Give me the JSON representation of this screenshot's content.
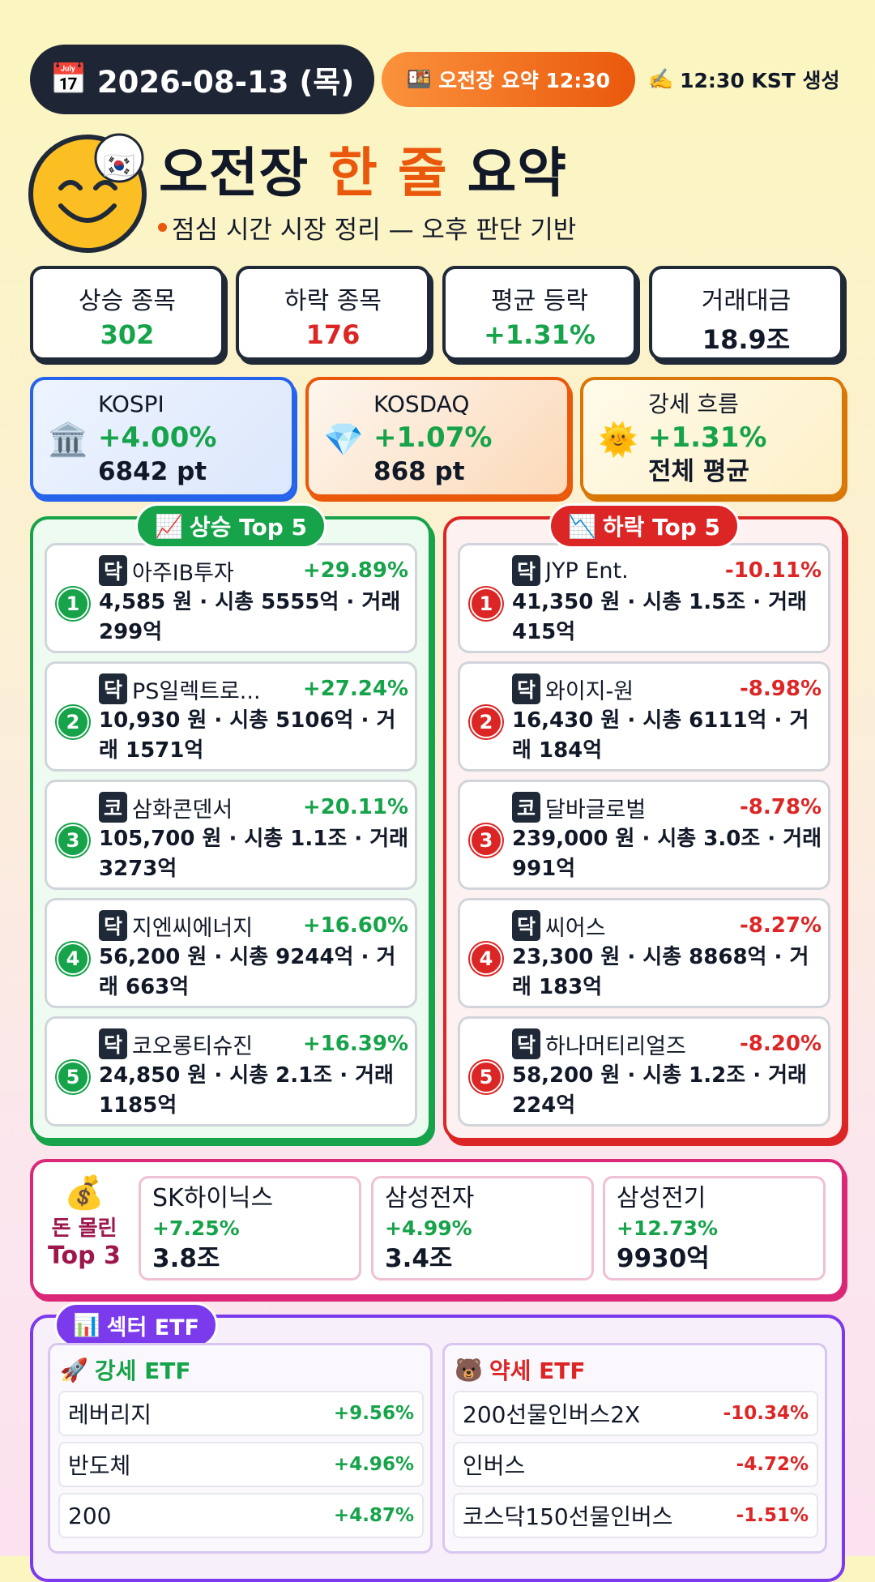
{
  "header": {
    "date_icon": "📅",
    "date": "2026-08-13 (목)",
    "session_icon": "🍱",
    "session": "오전장 요약 12:30",
    "generated_icon": "✍️",
    "generated": "12:30 KST 생성"
  },
  "hero": {
    "flag": "🇰🇷",
    "title_start": "오전장",
    "title_highlight": "한 줄",
    "title_end": "요약",
    "subtitle": "점심 시간 시장 정리 — 오후 판단 기반"
  },
  "stats": [
    {
      "label": "상승 종목",
      "value": "302"
    },
    {
      "label": "하락 종목",
      "value": "176"
    },
    {
      "label": "평균 등락",
      "value": "+1.31%"
    },
    {
      "label": "거래대금",
      "value": "18.9조"
    }
  ],
  "indices": [
    {
      "icon": "🏛️",
      "name": "KOSPI",
      "change": "+4.00%",
      "level": "6842 pt"
    },
    {
      "icon": "💎",
      "name": "KOSDAQ",
      "change": "+1.07%",
      "level": "868 pt"
    },
    {
      "icon": "🌞",
      "name": "강세 흐름",
      "change": "+1.31%",
      "level": "전체 평균"
    }
  ],
  "gainers": {
    "icon": "📈",
    "title": "상승 Top 5",
    "items": [
      {
        "rank": "1",
        "market": "닥",
        "name": "아주IB투자",
        "change": "+29.89%",
        "detail": "4,585 원 · 시총 5555억 · 거래 299억"
      },
      {
        "rank": "2",
        "market": "닥",
        "name": "PS일렉트로...",
        "change": "+27.24%",
        "detail": "10,930 원 · 시총 5106억 · 거래 1571억"
      },
      {
        "rank": "3",
        "market": "코",
        "name": "삼화콘덴서",
        "change": "+20.11%",
        "detail": "105,700 원 · 시총 1.1조 · 거래 3273억"
      },
      {
        "rank": "4",
        "market": "닥",
        "name": "지엔씨에너지",
        "change": "+16.60%",
        "detail": "56,200 원 · 시총 9244억 · 거래 663억"
      },
      {
        "rank": "5",
        "market": "닥",
        "name": "코오롱티슈진",
        "change": "+16.39%",
        "detail": "24,850 원 · 시총 2.1조 · 거래 1185억"
      }
    ]
  },
  "losers": {
    "icon": "📉",
    "title": "하락 Top 5",
    "items": [
      {
        "rank": "1",
        "market": "닥",
        "name": "JYP Ent.",
        "change": "-10.11%",
        "detail": "41,350 원 · 시총 1.5조 · 거래 415억"
      },
      {
        "rank": "2",
        "market": "닥",
        "name": "와이지-원",
        "change": "-8.98%",
        "detail": "16,430 원 · 시총 6111억 · 거래 184억"
      },
      {
        "rank": "3",
        "market": "코",
        "name": "달바글로벌",
        "change": "-8.78%",
        "detail": "239,000 원 · 시총 3.0조 · 거래 991억"
      },
      {
        "rank": "4",
        "market": "닥",
        "name": "씨어스",
        "change": "-8.27%",
        "detail": "23,300 원 · 시총 8868억 · 거래 183억"
      },
      {
        "rank": "5",
        "market": "닥",
        "name": "하나머티리얼즈",
        "change": "-8.20%",
        "detail": "58,200 원 · 시총 1.2조 · 거래 224억"
      }
    ]
  },
  "money": {
    "icon": "💰",
    "title": "돈 몰린",
    "subtitle": "Top 3",
    "items": [
      {
        "name": "SK하이닉스",
        "change": "+7.25%",
        "amount": "3.8조"
      },
      {
        "name": "삼성전자",
        "change": "+4.99%",
        "amount": "3.4조"
      },
      {
        "name": "삼성전기",
        "change": "+12.73%",
        "amount": "9930억"
      }
    ]
  },
  "etf": {
    "icon": "📊",
    "title": "섹터 ETF",
    "strong": {
      "icon": "🚀",
      "title": "강세 ETF",
      "items": [
        {
          "name": "레버리지",
          "change": "+9.56%"
        },
        {
          "name": "반도체",
          "change": "+4.96%"
        },
        {
          "name": "200",
          "change": "+4.87%"
        }
      ]
    },
    "weak": {
      "icon": "🐻",
      "title": "약세 ETF",
      "items": [
        {
          "name": "200선물인버스2X",
          "change": "-10.34%"
        },
        {
          "name": "인버스",
          "change": "-4.72%"
        },
        {
          "name": "코스닥150선물인버스",
          "change": "-1.51%"
        }
      ]
    }
  }
}
